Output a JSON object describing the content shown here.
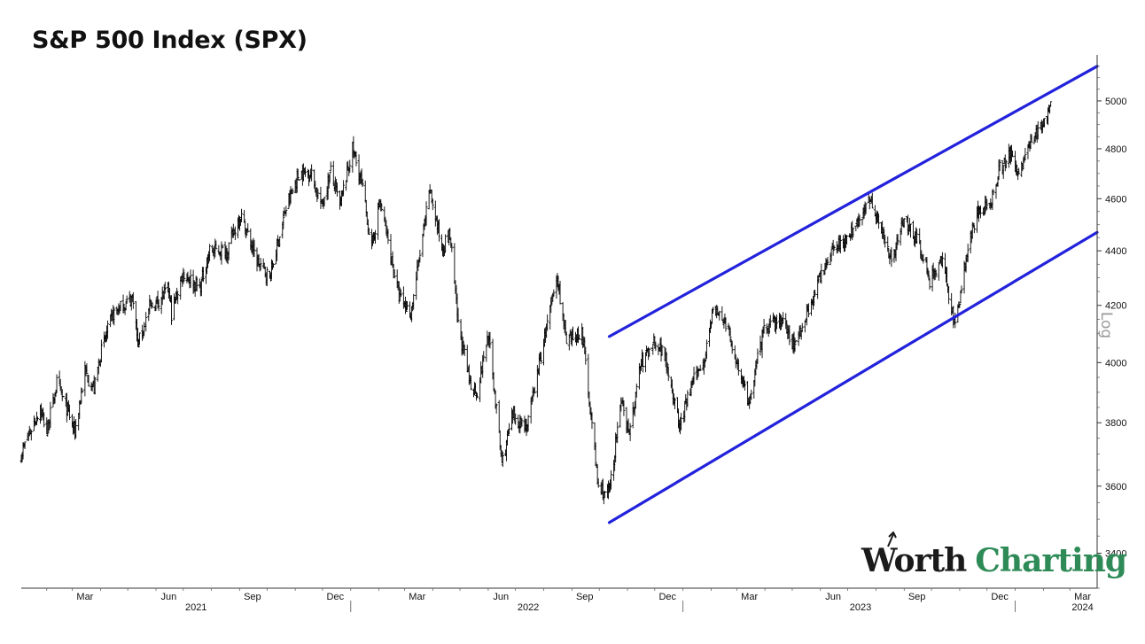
{
  "chart_data": {
    "type": "bar",
    "subtype": "ohlc-price",
    "title": "S&P 500 Index (SPX)",
    "y_scale_label": "Log",
    "log_scale": true,
    "ylim": [
      3300,
      5200
    ],
    "y_ticks": [
      3400,
      3600,
      3800,
      4000,
      4200,
      4400,
      4600,
      4800,
      5000
    ],
    "x_start": "2021-01-04",
    "x_end": "2024-03-31",
    "month_ticks": [
      {
        "label": "Mar",
        "date": "2021-03-01"
      },
      {
        "label": "Jun",
        "date": "2021-06-01"
      },
      {
        "label": "Sep",
        "date": "2021-09-01"
      },
      {
        "label": "Dec",
        "date": "2021-12-01"
      },
      {
        "label": "Mar",
        "date": "2022-03-01"
      },
      {
        "label": "Jun",
        "date": "2022-06-01"
      },
      {
        "label": "Sep",
        "date": "2022-09-01"
      },
      {
        "label": "Dec",
        "date": "2022-12-01"
      },
      {
        "label": "Mar",
        "date": "2023-03-01"
      },
      {
        "label": "Jun",
        "date": "2023-06-01"
      },
      {
        "label": "Sep",
        "date": "2023-09-01"
      },
      {
        "label": "Dec",
        "date": "2023-12-01"
      },
      {
        "label": "Mar",
        "date": "2024-03-01"
      }
    ],
    "year_labels": [
      {
        "label": "2021",
        "date": "2021-07-01"
      },
      {
        "label": "2022",
        "date": "2022-07-01"
      },
      {
        "label": "2023",
        "date": "2023-07-01"
      },
      {
        "label": "2024",
        "date": "2024-03-01"
      }
    ],
    "year_separators": [
      "2022-01-01",
      "2023-01-01",
      "2024-01-01"
    ],
    "series": [
      {
        "points": [
          [
            "2021-01-04",
            3700
          ],
          [
            "2021-01-15",
            3780
          ],
          [
            "2021-01-25",
            3850
          ],
          [
            "2021-02-01",
            3770
          ],
          [
            "2021-02-12",
            3930
          ],
          [
            "2021-02-25",
            3830
          ],
          [
            "2021-03-04",
            3770
          ],
          [
            "2021-03-15",
            3970
          ],
          [
            "2021-03-25",
            3910
          ],
          [
            "2021-04-01",
            4030
          ],
          [
            "2021-04-15",
            4170
          ],
          [
            "2021-05-07",
            4230
          ],
          [
            "2021-05-12",
            4060
          ],
          [
            "2021-05-25",
            4190
          ],
          [
            "2021-06-15",
            4255
          ],
          [
            "2021-06-18",
            4170
          ],
          [
            "2021-07-01",
            4320
          ],
          [
            "2021-07-19",
            4260
          ],
          [
            "2021-07-30",
            4400
          ],
          [
            "2021-08-18",
            4400
          ],
          [
            "2021-09-02",
            4540
          ],
          [
            "2021-09-20",
            4360
          ],
          [
            "2021-10-04",
            4300
          ],
          [
            "2021-10-21",
            4550
          ],
          [
            "2021-11-05",
            4700
          ],
          [
            "2021-11-18",
            4705
          ],
          [
            "2021-11-30",
            4570
          ],
          [
            "2021-12-10",
            4710
          ],
          [
            "2021-12-20",
            4570
          ],
          [
            "2022-01-03",
            4800
          ],
          [
            "2022-01-13",
            4660
          ],
          [
            "2022-01-24",
            4410
          ],
          [
            "2022-02-02",
            4590
          ],
          [
            "2022-02-23",
            4230
          ],
          [
            "2022-03-08",
            4170
          ],
          [
            "2022-03-29",
            4630
          ],
          [
            "2022-04-11",
            4410
          ],
          [
            "2022-04-20",
            4460
          ],
          [
            "2022-04-29",
            4130
          ],
          [
            "2022-05-12",
            3930
          ],
          [
            "2022-05-20",
            3900
          ],
          [
            "2022-06-01",
            4100
          ],
          [
            "2022-06-16",
            3670
          ],
          [
            "2022-06-28",
            3820
          ],
          [
            "2022-07-14",
            3790
          ],
          [
            "2022-08-16",
            4305
          ],
          [
            "2022-08-26",
            4060
          ],
          [
            "2022-09-12",
            4110
          ],
          [
            "2022-09-30",
            3590
          ],
          [
            "2022-10-12",
            3580
          ],
          [
            "2022-10-25",
            3860
          ],
          [
            "2022-11-04",
            3770
          ],
          [
            "2022-11-15",
            3990
          ],
          [
            "2022-12-01",
            4080
          ],
          [
            "2022-12-13",
            4020
          ],
          [
            "2022-12-28",
            3785
          ],
          [
            "2023-01-10",
            3920
          ],
          [
            "2023-01-25",
            4020
          ],
          [
            "2023-02-02",
            4180
          ],
          [
            "2023-02-15",
            4150
          ],
          [
            "2023-03-09",
            3920
          ],
          [
            "2023-03-13",
            3850
          ],
          [
            "2023-03-31",
            4110
          ],
          [
            "2023-04-18",
            4150
          ],
          [
            "2023-05-04",
            4060
          ],
          [
            "2023-05-19",
            4190
          ],
          [
            "2023-06-15",
            4420
          ],
          [
            "2023-07-03",
            4450
          ],
          [
            "2023-07-20",
            4560
          ],
          [
            "2023-07-27",
            4600
          ],
          [
            "2023-08-18",
            4370
          ],
          [
            "2023-09-01",
            4520
          ],
          [
            "2023-09-15",
            4450
          ],
          [
            "2023-09-29",
            4290
          ],
          [
            "2023-10-12",
            4370
          ],
          [
            "2023-10-27",
            4120
          ],
          [
            "2023-11-08",
            4380
          ],
          [
            "2023-11-20",
            4545
          ],
          [
            "2023-12-04",
            4570
          ],
          [
            "2023-12-14",
            4720
          ],
          [
            "2023-12-28",
            4780
          ],
          [
            "2024-01-05",
            4700
          ],
          [
            "2024-01-19",
            4840
          ],
          [
            "2024-02-01",
            4900
          ],
          [
            "2024-02-09",
            5000
          ]
        ]
      }
    ],
    "trend_lines": [
      {
        "start": [
          "2022-10-12",
          3490
        ],
        "end": [
          "2024-03-31",
          4470
        ],
        "color": "#2222dd"
      },
      {
        "start": [
          "2022-10-12",
          4090
        ],
        "end": [
          "2024-03-31",
          5150
        ],
        "color": "#2222dd"
      }
    ]
  },
  "logo": {
    "part1": "Worth",
    "part2": "Charting",
    "accent_color": "#2e8b57"
  }
}
